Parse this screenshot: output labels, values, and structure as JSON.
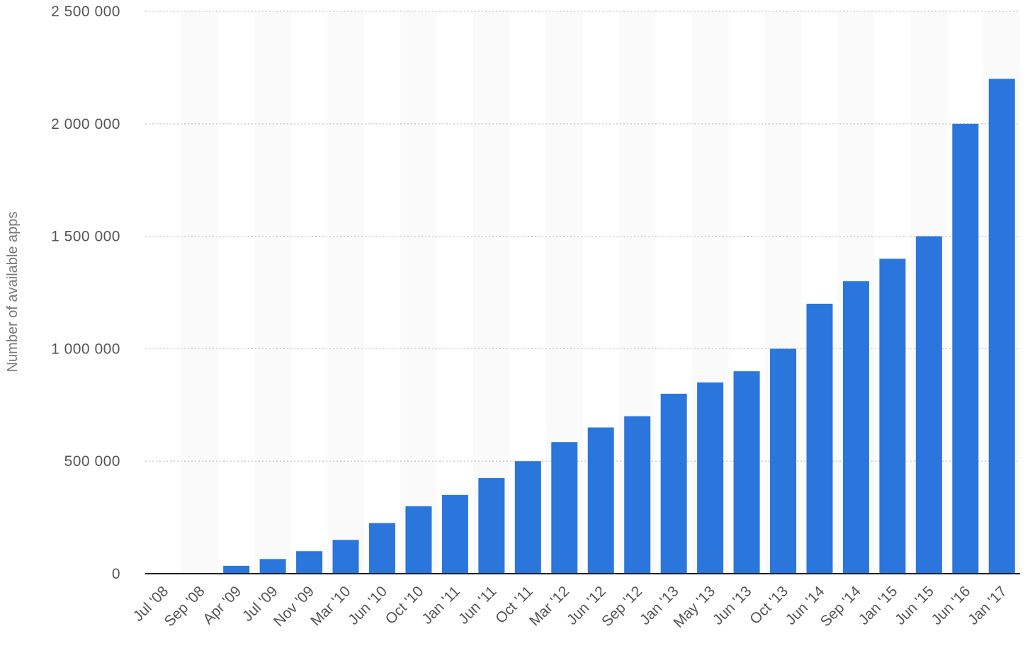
{
  "chart_data": {
    "type": "bar",
    "title": "",
    "xlabel": "",
    "ylabel": "Number of available apps",
    "ylim": [
      0,
      2500000
    ],
    "yticks": [
      0,
      500000,
      1000000,
      1500000,
      2000000,
      2500000
    ],
    "ytick_labels": [
      "0",
      "500 000",
      "1 000 000",
      "1 500 000",
      "2 000 000",
      "2 500 000"
    ],
    "grid": true,
    "legend": "none",
    "bar_color": "#2a76dc",
    "categories": [
      "Jul '08",
      "Sep '08",
      "Apr '09",
      "Jul '09",
      "Nov '09",
      "Mar '10",
      "Jun '10",
      "Oct '10",
      "Jan '11",
      "Jun '11",
      "Oct '11",
      "Mar '12",
      "Jun '12",
      "Sep '12",
      "Jan '13",
      "May '13",
      "Jun '13",
      "Oct '13",
      "Jun '14",
      "Sep '14",
      "Jan '15",
      "Jun '15",
      "Jun '16",
      "Jan '17"
    ],
    "values": [
      800,
      3000,
      35000,
      65000,
      100000,
      150000,
      225000,
      300000,
      350000,
      425000,
      500000,
      585000,
      650000,
      700000,
      800000,
      850000,
      900000,
      1000000,
      1200000,
      1300000,
      1400000,
      1500000,
      2000000,
      2200000
    ]
  }
}
